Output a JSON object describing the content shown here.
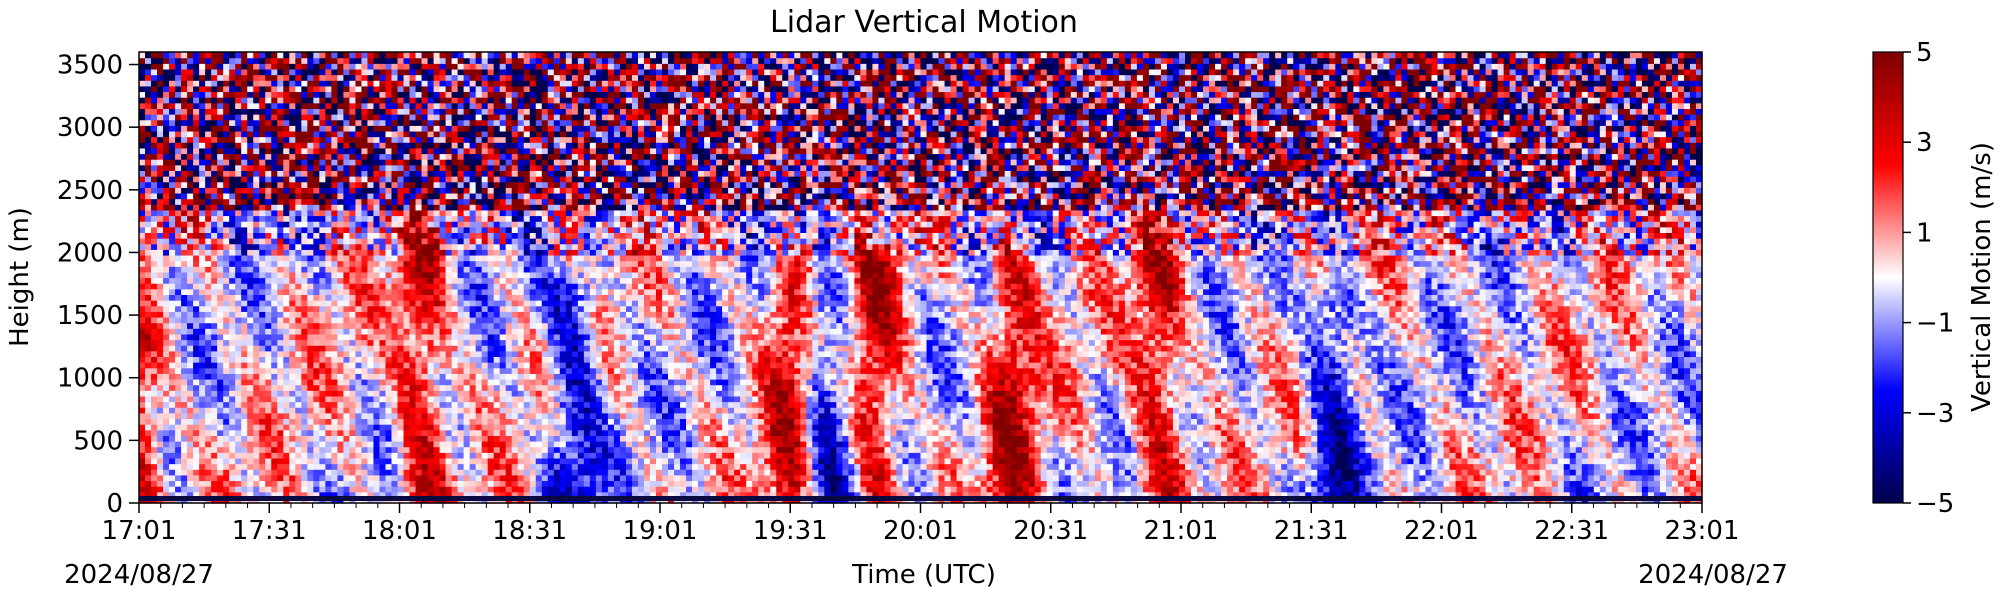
{
  "chart_data": {
    "type": "heatmap",
    "title": "Lidar Vertical Motion",
    "xlabel": "Time (UTC)",
    "ylabel": "Height (m)",
    "x_start_date_label": "2024/08/27",
    "x_end_date_label": "2024/08/27",
    "x_ticks": [
      "17:01",
      "17:31",
      "18:01",
      "18:31",
      "19:01",
      "19:31",
      "20:01",
      "20:31",
      "21:01",
      "21:31",
      "22:01",
      "22:31",
      "23:01"
    ],
    "xlim": [
      "17:01",
      "23:01"
    ],
    "y_ticks": [
      0,
      500,
      1000,
      1500,
      2000,
      2500,
      3000,
      3500
    ],
    "ylim": [
      0,
      3600
    ],
    "colorbar": {
      "label": "Vertical Motion (m/s)",
      "range": [
        -5,
        5
      ],
      "ticks": [
        5,
        3,
        1,
        -1,
        -3,
        -5
      ],
      "tick_labels": [
        "5",
        "3",
        "1",
        "−1",
        "−3",
        "−5"
      ],
      "colormap": "seismic"
    },
    "colors": {
      "negative_extreme": "#00004c",
      "negative": "#0000ff",
      "zero": "#ffffff",
      "positive": "#ff0000",
      "positive_extreme": "#800000"
    },
    "features": [
      {
        "time": "17:01",
        "height_top": 1300,
        "sign": "updraft"
      },
      {
        "time": "18:06",
        "height_top": 2200,
        "sign": "updraft"
      },
      {
        "time": "18:41",
        "height_top": 1700,
        "sign": "downdraft"
      },
      {
        "time": "19:31",
        "height_top": 1800,
        "sign": "updraft"
      },
      {
        "time": "19:39",
        "height_top": 1700,
        "sign": "downdraft"
      },
      {
        "time": "19:51",
        "height_top": 1900,
        "sign": "updraft"
      },
      {
        "time": "20:22",
        "height_top": 2000,
        "sign": "updraft"
      },
      {
        "time": "20:56",
        "height_top": 2200,
        "sign": "updraft"
      },
      {
        "time": "21:36",
        "height_top": 1600,
        "sign": "downdraft"
      }
    ]
  }
}
